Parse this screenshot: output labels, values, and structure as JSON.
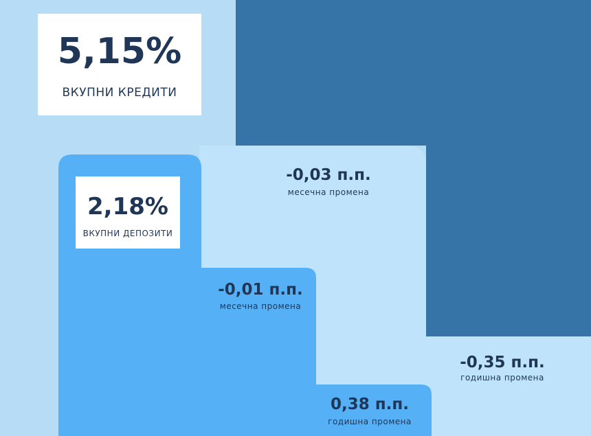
{
  "loans": {
    "value": "5,15%",
    "label": "ВКУПНИ КРЕДИТИ",
    "monthly": {
      "value": "-0,03 п.п.",
      "label": "месечна промена"
    },
    "annual": {
      "value": "-0,35 п.п.",
      "label": "годишна промена"
    }
  },
  "deposits": {
    "value": "2,18%",
    "label": "ВКУПНИ ДЕПОЗИТИ",
    "monthly": {
      "value": "-0,01 п.п.",
      "label": "месечна промена"
    },
    "annual": {
      "value": "0,38 п.п.",
      "label": "годишна промена"
    }
  }
}
